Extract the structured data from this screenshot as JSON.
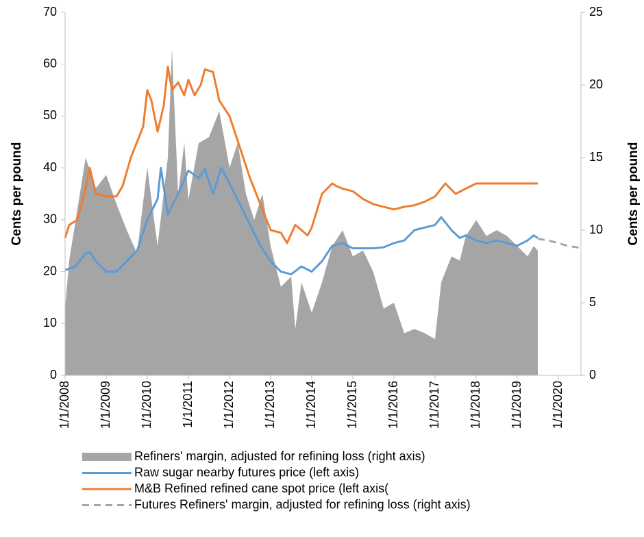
{
  "chart_data": {
    "type": "combo",
    "ylabel": "Cents per pound",
    "y2label": "Cents per pound",
    "xlim": [
      2008,
      2020.55
    ],
    "xticks": [
      {
        "value": 2008,
        "label": "1/1/2008"
      },
      {
        "value": 2009,
        "label": "1/1/2009"
      },
      {
        "value": 2010,
        "label": "1/1/2010"
      },
      {
        "value": 2011,
        "label": "1/1/2011"
      },
      {
        "value": 2012,
        "label": "1/1/2012"
      },
      {
        "value": 2013,
        "label": "1/1/2013"
      },
      {
        "value": 2014,
        "label": "1/1/2014"
      },
      {
        "value": 2015,
        "label": "1/1/2015"
      },
      {
        "value": 2016,
        "label": "1/1/2016"
      },
      {
        "value": 2017,
        "label": "1/1/2017"
      },
      {
        "value": 2018,
        "label": "1/1/2018"
      },
      {
        "value": 2019,
        "label": "1/1/2019"
      },
      {
        "value": 2020,
        "label": "1/1/2020"
      }
    ],
    "ylim": [
      0,
      70
    ],
    "yticks": [
      0,
      10,
      20,
      30,
      40,
      50,
      60,
      70
    ],
    "y2lim": [
      0,
      25
    ],
    "y2ticks": [
      0,
      5,
      10,
      15,
      20,
      25
    ],
    "series": [
      {
        "name": "Refiners' margin, adjusted for refining loss (right axis)",
        "type": "area",
        "axis": "y2",
        "color": "#a5a5a5",
        "x": [
          2008.0,
          2008.1,
          2008.5,
          2008.75,
          2009.0,
          2009.25,
          2009.5,
          2009.75,
          2010.0,
          2010.25,
          2010.5,
          2010.6,
          2010.75,
          2010.9,
          2011.0,
          2011.25,
          2011.5,
          2011.75,
          2012.0,
          2012.2,
          2012.4,
          2012.6,
          2012.8,
          2013.0,
          2013.25,
          2013.5,
          2013.6,
          2013.75,
          2014.0,
          2014.25,
          2014.5,
          2014.75,
          2015.0,
          2015.25,
          2015.5,
          2015.75,
          2016.0,
          2016.25,
          2016.5,
          2016.75,
          2017.0,
          2017.15,
          2017.4,
          2017.6,
          2017.75,
          2018.0,
          2018.25,
          2018.5,
          2018.75,
          2019.0,
          2019.25,
          2019.4,
          2019.5
        ],
        "values": [
          4.6,
          7.9,
          15,
          12.9,
          13.8,
          11.8,
          10,
          8.4,
          14.3,
          8.9,
          15,
          22.5,
          12.5,
          16,
          12.1,
          16,
          16.4,
          18.2,
          14.3,
          16,
          12.5,
          10.7,
          12.5,
          8.9,
          6.1,
          6.8,
          3.2,
          6.4,
          4.3,
          6.4,
          8.9,
          10,
          8.2,
          8.6,
          7.1,
          4.6,
          5,
          2.9,
          3.2,
          2.9,
          2.5,
          6.4,
          8.2,
          7.9,
          9.6,
          10.7,
          9.6,
          10,
          9.6,
          8.9,
          8.2,
          8.9,
          8.6
        ]
      },
      {
        "name": "Raw sugar nearby futures price (left axis)",
        "type": "line",
        "color": "#5b9bd5",
        "x": [
          2008.0,
          2008.25,
          2008.5,
          2008.6,
          2008.75,
          2009.0,
          2009.25,
          2009.5,
          2009.75,
          2010.0,
          2010.25,
          2010.33,
          2010.5,
          2010.75,
          2011.0,
          2011.25,
          2011.4,
          2011.6,
          2011.8,
          2012.0,
          2012.25,
          2012.5,
          2012.75,
          2013.0,
          2013.25,
          2013.5,
          2013.75,
          2014.0,
          2014.25,
          2014.5,
          2014.75,
          2015.0,
          2015.25,
          2015.5,
          2015.75,
          2016.0,
          2016.25,
          2016.5,
          2016.75,
          2017.0,
          2017.15,
          2017.4,
          2017.6,
          2017.75,
          2018.0,
          2018.25,
          2018.5,
          2018.75,
          2019.0,
          2019.25,
          2019.4,
          2019.5
        ],
        "values": [
          20.3,
          21,
          23.5,
          23.8,
          22,
          20,
          20,
          22,
          24,
          30,
          34,
          40,
          31,
          35,
          39.5,
          38,
          39.8,
          35,
          40,
          37,
          33,
          29,
          25,
          22,
          20,
          19.5,
          21,
          20,
          22,
          25,
          25.5,
          24.5,
          24.5,
          24.5,
          24.7,
          25.5,
          26,
          28,
          28.5,
          29,
          30.5,
          28,
          26.5,
          27,
          26,
          25.5,
          26,
          25.5,
          25,
          26,
          27,
          26.5
        ]
      },
      {
        "name": "M&B Refined refined cane spot price (left axis(",
        "type": "line",
        "color": "#ed7d31",
        "x": [
          2008.0,
          2008.1,
          2008.3,
          2008.5,
          2008.6,
          2008.75,
          2009.0,
          2009.25,
          2009.4,
          2009.6,
          2009.75,
          2009.9,
          2010.0,
          2010.1,
          2010.25,
          2010.4,
          2010.5,
          2010.6,
          2010.75,
          2010.9,
          2011.0,
          2011.15,
          2011.3,
          2011.4,
          2011.6,
          2011.75,
          2012.0,
          2012.25,
          2012.5,
          2012.75,
          2013.0,
          2013.25,
          2013.4,
          2013.6,
          2013.75,
          2013.9,
          2014.0,
          2014.25,
          2014.5,
          2014.6,
          2014.75,
          2015.0,
          2015.25,
          2015.5,
          2015.75,
          2016.0,
          2016.25,
          2016.5,
          2016.75,
          2017.0,
          2017.25,
          2017.5,
          2017.75,
          2018.0,
          2018.5,
          2019.0,
          2019.5
        ],
        "values": [
          26.5,
          29,
          30,
          36,
          40,
          35,
          34.5,
          34.5,
          36.5,
          42,
          45,
          48,
          55,
          53,
          47,
          52,
          59.5,
          55,
          56.5,
          54,
          57,
          54,
          56,
          59,
          58.5,
          53,
          50,
          44,
          38,
          33,
          28,
          27.5,
          25.5,
          29,
          28,
          27,
          28.5,
          35,
          37,
          36.5,
          36,
          35.5,
          34,
          33,
          32.5,
          32,
          32.5,
          32.8,
          33.5,
          34.5,
          37,
          35,
          36,
          37,
          37,
          37,
          37
        ]
      },
      {
        "name": "Futures Refiners' margin, adjusted for refining loss (right axis)",
        "type": "line",
        "axis": "y2",
        "dash": true,
        "color": "#a5a5a5",
        "x": [
          2019.5,
          2019.75,
          2020.0,
          2020.25,
          2020.5
        ],
        "values": [
          9.4,
          9.3,
          9.1,
          8.9,
          8.8
        ]
      }
    ]
  }
}
